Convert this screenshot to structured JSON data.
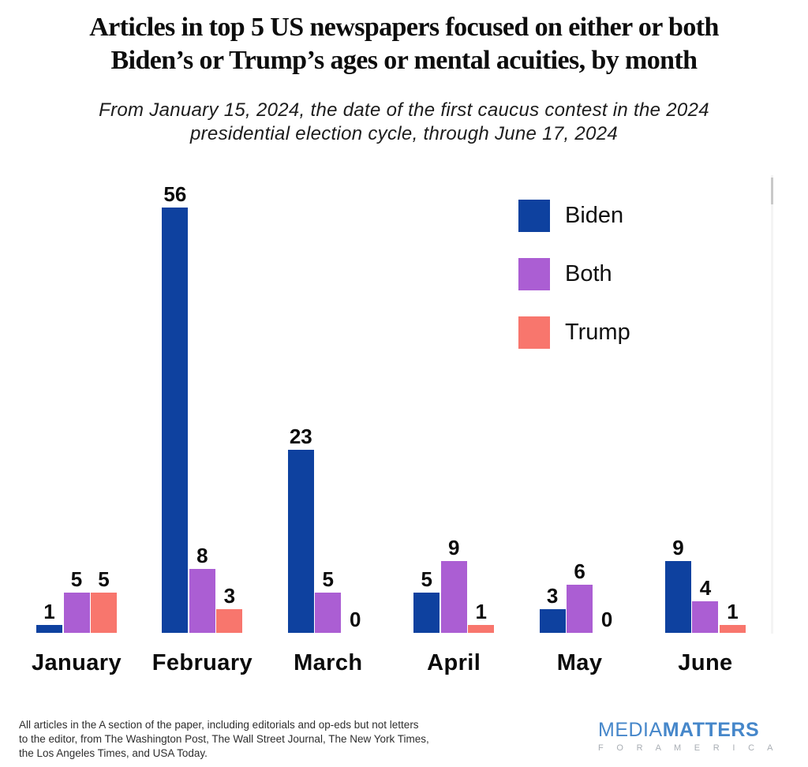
{
  "title": {
    "line1": "Articles in top 5 US newspapers focused on either or both",
    "line2": "Biden’s or Trump’s ages or mental acuities, by month"
  },
  "subtitle": {
    "line1": "From January 15, 2024, the date of the first caucus contest in the 2024",
    "line2": "presidential election cycle, through June 17, 2024"
  },
  "chart_data": {
    "type": "bar",
    "categories": [
      "January",
      "February",
      "March",
      "April",
      "May",
      "June"
    ],
    "series": [
      {
        "name": "Biden",
        "color": "#0e419f",
        "values": [
          1,
          56,
          23,
          5,
          3,
          9
        ]
      },
      {
        "name": "Both",
        "color": "#ab5ed3",
        "values": [
          5,
          8,
          5,
          9,
          6,
          4
        ]
      },
      {
        "name": "Trump",
        "color": "#f8766d",
        "values": [
          5,
          3,
          0,
          1,
          0,
          1
        ]
      }
    ],
    "value_labels": true,
    "ylim": [
      0,
      56
    ],
    "grid": false,
    "axes_visible": false,
    "legend_position": "upper-right"
  },
  "legend": {
    "items": [
      {
        "label": "Biden",
        "color": "#0e419f"
      },
      {
        "label": "Both",
        "color": "#ab5ed3"
      },
      {
        "label": "Trump",
        "color": "#f8766d"
      }
    ]
  },
  "footnote": {
    "lines": [
      "All articles in the A section of the paper, including editorials and op-eds but not letters",
      "to the editor, from The Washington Post, The Wall Street Journal, The New York Times,",
      "the Los Angeles Times, and USA Today."
    ]
  },
  "logo": {
    "media": "MEDIA",
    "matters": "MATTERS",
    "tagline": "F O R   A M E R I C A"
  }
}
